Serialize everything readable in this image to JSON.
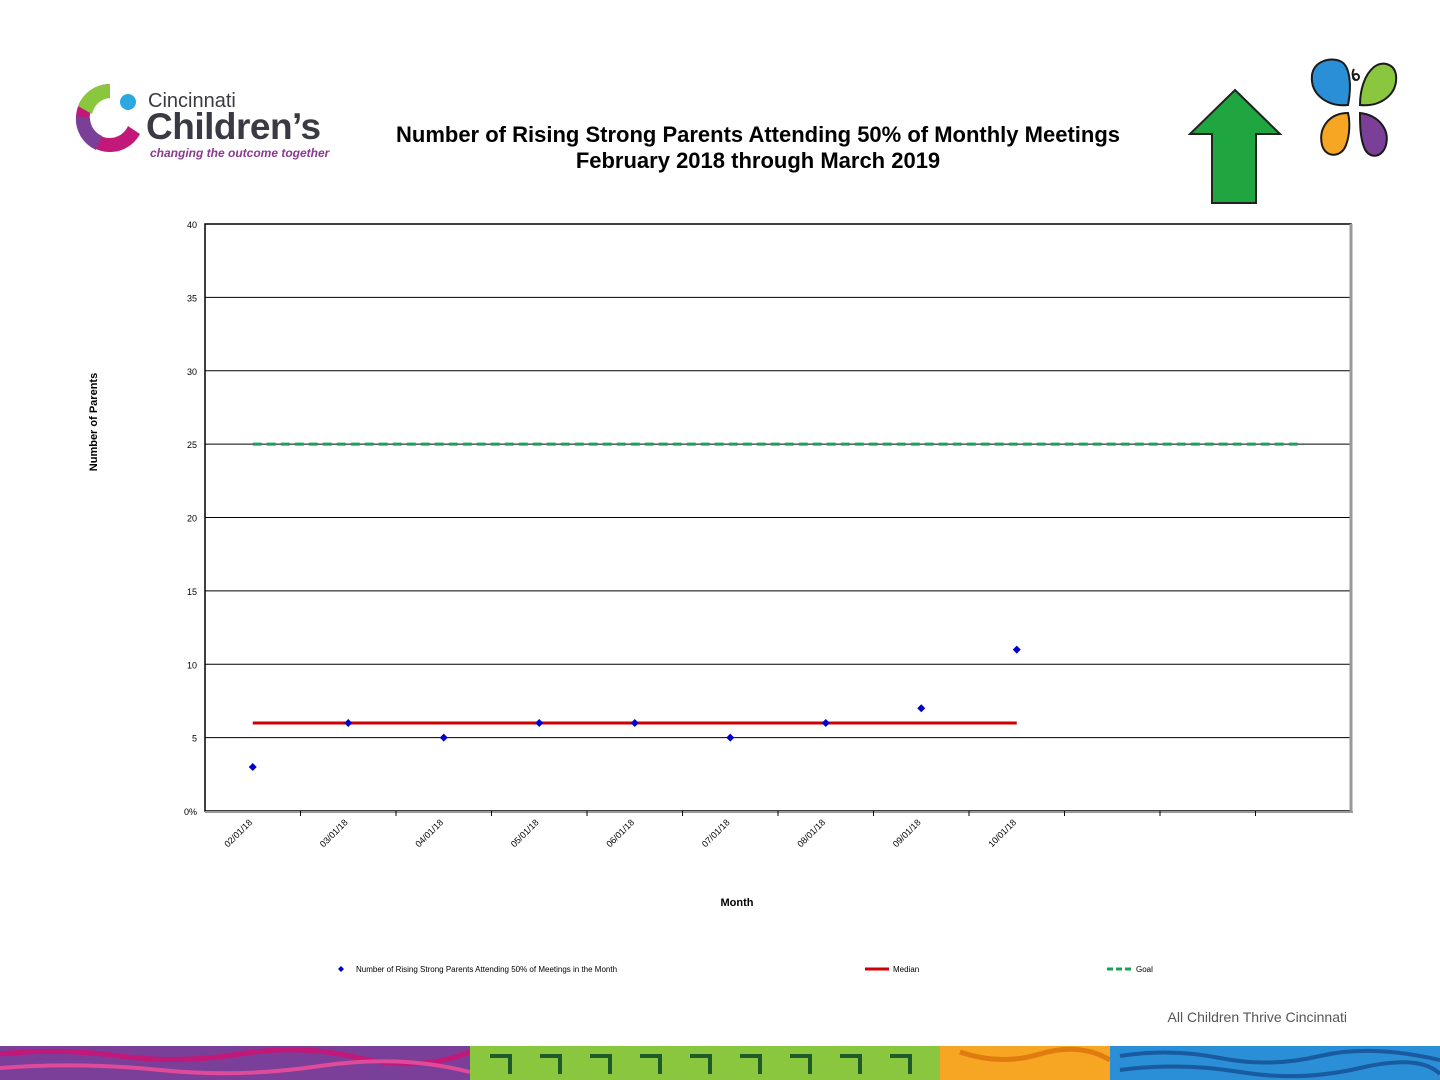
{
  "header": {
    "logo_line1": "Cincinnati",
    "logo_line2": "Children’s",
    "logo_line3": "changing the outcome together",
    "title_line1": "Number of Rising Strong Parents Attending 50% of Monthly Meetings",
    "title_line2": "February 2018 through March 2019"
  },
  "footer": {
    "text": "All Children Thrive Cincinnati"
  },
  "colors": {
    "series": "#0000cc",
    "median": "#cc0000",
    "goal": "#1aa05a",
    "arrow": "#20a640"
  },
  "chart_data": {
    "type": "scatter",
    "xlabel": "Month",
    "ylabel": "Number of Parents",
    "ylim": [
      0,
      40
    ],
    "yticks": [
      0,
      5,
      10,
      15,
      20,
      25,
      30,
      35,
      40
    ],
    "ytick_labels": [
      "0%",
      "5",
      "10",
      "15",
      "20",
      "25",
      "30",
      "35",
      "40"
    ],
    "categories": [
      "02/01/18",
      "03/01/18",
      "04/01/18",
      "05/01/18",
      "06/01/18",
      "07/01/18",
      "08/01/18",
      "09/01/18",
      "10/01/18",
      "",
      "",
      ""
    ],
    "series": [
      {
        "name": "Number of Rising Strong Parents Attending 50% of Meetings in the Month",
        "values": [
          3,
          6,
          5,
          6,
          6,
          5,
          6,
          7,
          11
        ]
      }
    ],
    "median": {
      "name": "Median",
      "value": 6,
      "from_index": 0,
      "to_index": 8
    },
    "goal": {
      "name": "Goal",
      "value": 25,
      "from_index": 0,
      "to_index": 11
    },
    "grid": true,
    "legend_position": "bottom"
  }
}
